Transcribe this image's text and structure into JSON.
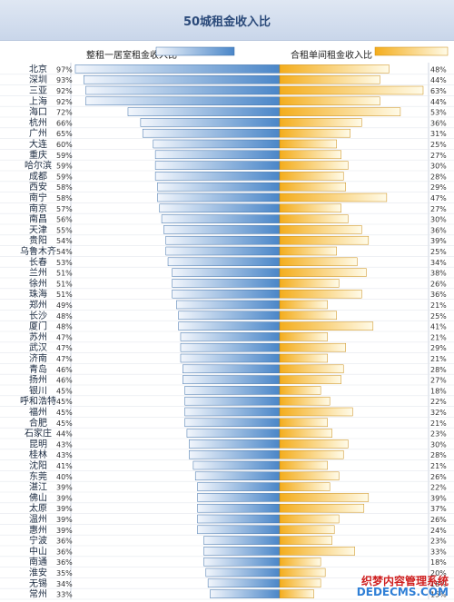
{
  "chart_data": {
    "type": "bar",
    "title": "50城租金收入比",
    "legend": {
      "left": "整租一居室租金收入比",
      "right": "合租单间租金收入比"
    },
    "colors": {
      "left_bar": "#4a86c8",
      "right_bar": "#f4ad1c",
      "grid": "#cfd6e0"
    },
    "categories": [
      "北京",
      "深圳",
      "三亚",
      "上海",
      "海口",
      "杭州",
      "广州",
      "大连",
      "重庆",
      "哈尔滨",
      "成都",
      "西安",
      "南宁",
      "南京",
      "南昌",
      "天津",
      "贵阳",
      "乌鲁木齐",
      "长春",
      "兰州",
      "徐州",
      "珠海",
      "郑州",
      "长沙",
      "厦门",
      "苏州",
      "武汉",
      "济南",
      "青岛",
      "扬州",
      "银川",
      "呼和浩特",
      "福州",
      "合肥",
      "石家庄",
      "昆明",
      "桂林",
      "沈阳",
      "东莞",
      "湛江",
      "佛山",
      "太原",
      "温州",
      "惠州",
      "宁波",
      "中山",
      "南通",
      "淮安",
      "无锡",
      "常州"
    ],
    "series": [
      {
        "name": "整租一居室租金收入比",
        "values": [
          97,
          93,
          92,
          92,
          72,
          66,
          65,
          60,
          59,
          59,
          59,
          58,
          58,
          57,
          56,
          55,
          54,
          54,
          53,
          51,
          51,
          51,
          49,
          48,
          48,
          47,
          47,
          47,
          46,
          46,
          45,
          45,
          45,
          45,
          44,
          43,
          43,
          41,
          40,
          39,
          39,
          39,
          39,
          39,
          36,
          36,
          36,
          35,
          34,
          33
        ],
        "labels": [
          "97%",
          "93%",
          "92%",
          "92%",
          "72%",
          "66%",
          "65%",
          "60%",
          "59%",
          "59%",
          "59%",
          "58%",
          "58%",
          "57%",
          "56%",
          "55%",
          "54%",
          "54%",
          "53%",
          "51%",
          "51%",
          "51%",
          "49%",
          "48%",
          "48%",
          "47%",
          "47%",
          "47%",
          "46%",
          "46%",
          "45%",
          "45%",
          "45%",
          "45%",
          "44%",
          "43%",
          "43%",
          "41%",
          "40%",
          "39%",
          "39%",
          "39%",
          "39%",
          "39%",
          "36%",
          "36%",
          "36%",
          "35%",
          "34%",
          "33%"
        ]
      },
      {
        "name": "合租单间租金收入比",
        "values": [
          48,
          44,
          63,
          44,
          53,
          36,
          31,
          25,
          27,
          30,
          28,
          29,
          47,
          27,
          30,
          36,
          39,
          25,
          34,
          38,
          26,
          36,
          21,
          25,
          41,
          21,
          29,
          21,
          28,
          27,
          18,
          22,
          32,
          21,
          23,
          30,
          28,
          21,
          26,
          22,
          39,
          37,
          26,
          24,
          23,
          33,
          18,
          20,
          18,
          15
        ],
        "labels": [
          "48%",
          "44%",
          "63%",
          "44%",
          "53%",
          "36%",
          "31%",
          "25%",
          "27%",
          "30%",
          "28%",
          "29%",
          "47%",
          "27%",
          "30%",
          "36%",
          "39%",
          "25%",
          "34%",
          "38%",
          "26%",
          "36%",
          "21%",
          "25%",
          "41%",
          "21%",
          "29%",
          "21%",
          "28%",
          "27%",
          "18%",
          "22%",
          "32%",
          "21%",
          "23%",
          "30%",
          "28%",
          "21%",
          "26%",
          "22%",
          "39%",
          "37%",
          "26%",
          "24%",
          "23%",
          "33%",
          "18%",
          "20%",
          "18%",
          "15%"
        ]
      }
    ],
    "xlim_left": [
      0,
      100
    ],
    "xlim_right": [
      0,
      65
    ],
    "grid": true
  },
  "watermark": {
    "line1": "织梦内容管理系统",
    "line2": "DEDECMS.COM"
  }
}
